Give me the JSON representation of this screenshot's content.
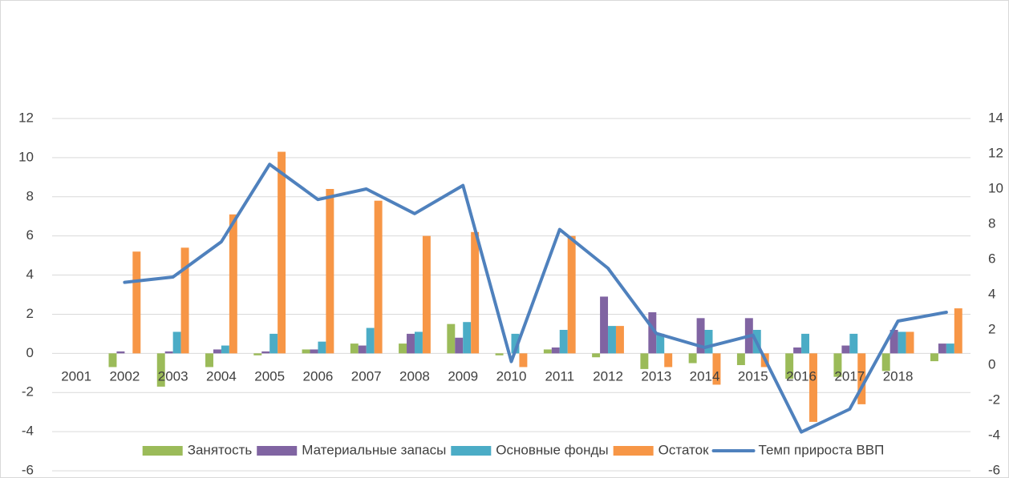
{
  "chart_data": {
    "type": "bar",
    "categories": [
      "2001",
      "2002",
      "2003",
      "2004",
      "2005",
      "2006",
      "2007",
      "2008",
      "2009",
      "2010",
      "2011",
      "2012",
      "2013",
      "2014",
      "2015",
      "2016",
      "2017",
      "2018",
      null
    ],
    "series": [
      {
        "name": "Занятость",
        "color": "#9bbb59",
        "type": "bar",
        "values": [
          null,
          -0.7,
          -1.7,
          -0.7,
          -0.1,
          0.2,
          0.5,
          0.5,
          1.5,
          -0.1,
          0.2,
          -0.2,
          -0.8,
          -0.5,
          -0.6,
          -1.3,
          -1.2,
          -0.9,
          -0.4
        ]
      },
      {
        "name": "Материальные запасы",
        "color": "#8064a2",
        "type": "bar",
        "values": [
          null,
          0.1,
          0.1,
          0.2,
          0.1,
          0.2,
          0.4,
          1.0,
          0.8,
          0,
          0.3,
          2.9,
          2.1,
          1.8,
          1.8,
          0.3,
          0.4,
          1.2,
          0.5
        ]
      },
      {
        "name": "Основные фонды",
        "color": "#4bacc6",
        "type": "bar",
        "values": [
          null,
          0,
          1.1,
          0.4,
          1.0,
          0.6,
          1.3,
          1.1,
          1.6,
          1.0,
          1.2,
          1.4,
          1.0,
          1.2,
          1.2,
          1.0,
          1.0,
          1.1,
          0.5
        ]
      },
      {
        "name": "Остаток",
        "color": "#f79646",
        "type": "bar",
        "values": [
          null,
          5.2,
          5.4,
          7.1,
          10.3,
          8.4,
          7.8,
          6.0,
          6.2,
          -0.7,
          6.0,
          1.4,
          -0.7,
          -1.6,
          -0.7,
          -3.5,
          -2.6,
          1.1,
          2.3
        ]
      },
      {
        "name": "Темп прироста ВВП",
        "color": "#4f81bd",
        "type": "line",
        "axis": "y2",
        "values": [
          null,
          4.7,
          5.0,
          7.0,
          11.4,
          9.4,
          10.0,
          8.6,
          10.2,
          0.2,
          7.7,
          5.5,
          1.8,
          1.0,
          1.7,
          -3.8,
          -2.5,
          2.5,
          3.0
        ]
      }
    ],
    "ylim": [
      -6,
      12
    ],
    "yticks": [
      -6,
      -4,
      -2,
      0,
      2,
      4,
      6,
      8,
      10,
      12
    ],
    "y2lim": [
      -6,
      14
    ],
    "y2ticks": [
      -6,
      -4,
      -2,
      0,
      2,
      4,
      6,
      8,
      10,
      12,
      14
    ],
    "grid": true,
    "legend": "bottom"
  }
}
